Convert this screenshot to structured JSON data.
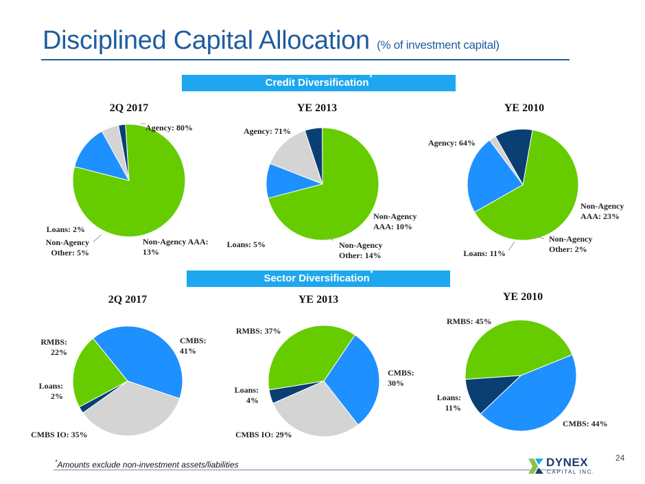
{
  "header": {
    "title": "Disciplined Capital Allocation",
    "subtitle": "(% of investment capital)"
  },
  "banners": {
    "credit": "Credit Diversification",
    "sector": "Sector Diversification",
    "marker": "*"
  },
  "colors": {
    "agency": "#66cc00",
    "rmbs": "#66cc00",
    "cmbs": "#1e90ff",
    "nonagency_aaa": "#1e90ff",
    "other": "#d4d4d4",
    "cmbs_io": "#d4d4d4",
    "loans": "#0a3f73",
    "title": "#1f5c9e",
    "banner": "#1ea7ef"
  },
  "chart_data": [
    {
      "type": "pie",
      "group": "credit",
      "title": "2Q 2017",
      "slices": [
        {
          "key": "agency",
          "lines": [
            "Agency: 80%"
          ],
          "value": 80
        },
        {
          "key": "nonagency_aaa",
          "lines": [
            "Non-Agency AAA:",
            "13%"
          ],
          "value": 13
        },
        {
          "key": "other",
          "lines": [
            "Non-Agency",
            "Other: 5%"
          ],
          "value": 5
        },
        {
          "key": "loans",
          "lines": [
            "Loans: 2%"
          ],
          "value": 2
        }
      ]
    },
    {
      "type": "pie",
      "group": "credit",
      "title": "YE 2013",
      "slices": [
        {
          "key": "agency",
          "lines": [
            "Agency: 71%"
          ],
          "value": 71
        },
        {
          "key": "nonagency_aaa",
          "lines": [
            "Non-Agency",
            "AAA: 10%"
          ],
          "value": 10
        },
        {
          "key": "other",
          "lines": [
            "Non-Agency",
            "Other: 14%"
          ],
          "value": 14
        },
        {
          "key": "loans",
          "lines": [
            "Loans: 5%"
          ],
          "value": 5
        }
      ]
    },
    {
      "type": "pie",
      "group": "credit",
      "title": "YE 2010",
      "slices": [
        {
          "key": "agency",
          "lines": [
            "Agency: 64%"
          ],
          "value": 64
        },
        {
          "key": "nonagency_aaa",
          "lines": [
            "Non-Agency",
            "AAA: 23%"
          ],
          "value": 23
        },
        {
          "key": "other",
          "lines": [
            "Non-Agency",
            "Other: 2%"
          ],
          "value": 2
        },
        {
          "key": "loans",
          "lines": [
            "Loans: 11%"
          ],
          "value": 11
        }
      ]
    },
    {
      "type": "pie",
      "group": "sector",
      "title": "2Q 2017",
      "slices": [
        {
          "key": "cmbs",
          "lines": [
            "CMBS:",
            "41%"
          ],
          "value": 41
        },
        {
          "key": "cmbs_io",
          "lines": [
            "CMBS IO: 35%"
          ],
          "value": 35
        },
        {
          "key": "loans",
          "lines": [
            "Loans:",
            "2%"
          ],
          "value": 2
        },
        {
          "key": "rmbs",
          "lines": [
            "RMBS:",
            "22%"
          ],
          "value": 22
        }
      ]
    },
    {
      "type": "pie",
      "group": "sector",
      "title": "YE 2013",
      "slices": [
        {
          "key": "cmbs",
          "lines": [
            "CMBS:",
            "30%"
          ],
          "value": 30
        },
        {
          "key": "cmbs_io",
          "lines": [
            "CMBS IO: 29%"
          ],
          "value": 29
        },
        {
          "key": "loans",
          "lines": [
            "Loans:",
            "4%"
          ],
          "value": 4
        },
        {
          "key": "rmbs",
          "lines": [
            "RMBS: 37%"
          ],
          "value": 37
        }
      ]
    },
    {
      "type": "pie",
      "group": "sector",
      "title": "YE 2010",
      "slices": [
        {
          "key": "rmbs",
          "lines": [
            "RMBS: 45%"
          ],
          "value": 45
        },
        {
          "key": "cmbs",
          "lines": [
            "CMBS: 44%"
          ],
          "value": 44
        },
        {
          "key": "loans",
          "lines": [
            "Loans:",
            "11%"
          ],
          "value": 11
        }
      ]
    }
  ],
  "footer": {
    "marker": "*",
    "note": "Amounts exclude non-investment assets/liabilities",
    "page": "24",
    "logo_name": "DYNEX",
    "logo_tag": "CAPITAL INC."
  }
}
